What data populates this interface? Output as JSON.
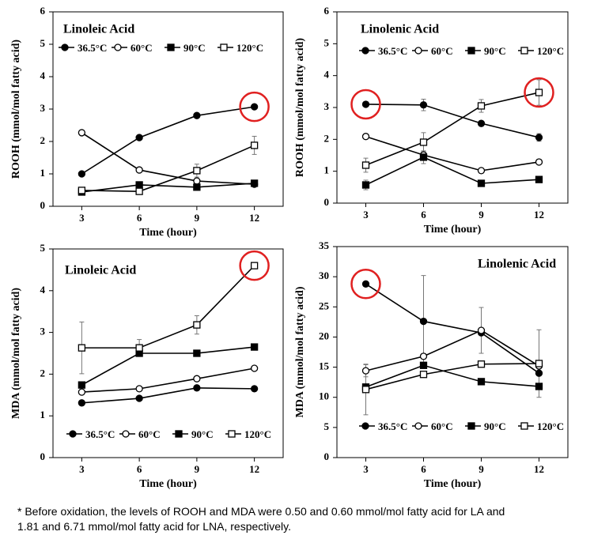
{
  "chart_data": [
    {
      "type": "line",
      "title": "Linoleic Acid",
      "x_label": "Time (hour)",
      "y_label": "ROOH (mmol/mol fatty acid)",
      "categories": [
        "3",
        "6",
        "9",
        "12"
      ],
      "ylim": [
        0,
        6
      ],
      "yticks": [
        0,
        1,
        2,
        3,
        4,
        5,
        6
      ],
      "legend": "top",
      "series": [
        {
          "name": "36.5°C",
          "color": "#000000",
          "marker": "circle",
          "filled": true,
          "values": [
            1.0,
            2.12,
            2.8,
            3.07
          ],
          "errors": [
            null,
            null,
            null,
            null
          ]
        },
        {
          "name": "60°C",
          "color": "#000000",
          "marker": "circle",
          "filled": false,
          "values": [
            2.27,
            1.12,
            0.78,
            0.68
          ],
          "errors": [
            null,
            null,
            null,
            null
          ]
        },
        {
          "name": "90°C",
          "color": "#000000",
          "marker": "square",
          "filled": true,
          "values": [
            0.44,
            0.66,
            0.59,
            0.71
          ],
          "errors": [
            null,
            null,
            null,
            null
          ]
        },
        {
          "name": "120°C",
          "color": "#000000",
          "marker": "square",
          "filled": false,
          "values": [
            0.49,
            0.46,
            1.1,
            1.88
          ],
          "errors": [
            null,
            null,
            0.2,
            0.28
          ]
        }
      ],
      "highlights": [
        {
          "series": 0,
          "index": 3
        }
      ]
    },
    {
      "type": "line",
      "title": "Linolenic Acid",
      "x_label": "Time (hour)",
      "y_label": "ROOH (mmol/mol fatty acid)",
      "categories": [
        "3",
        "6",
        "9",
        "12"
      ],
      "ylim": [
        0,
        6
      ],
      "yticks": [
        0,
        1,
        2,
        3,
        4,
        5,
        6
      ],
      "legend": "top",
      "series": [
        {
          "name": "36.5°C",
          "color": "#000000",
          "marker": "circle",
          "filled": true,
          "values": [
            3.1,
            3.08,
            2.5,
            2.06
          ],
          "errors": [
            null,
            0.18,
            null,
            0.12
          ]
        },
        {
          "name": "60°C",
          "color": "#000000",
          "marker": "circle",
          "filled": false,
          "values": [
            2.09,
            1.51,
            1.02,
            1.29
          ],
          "errors": [
            null,
            null,
            null,
            null
          ]
        },
        {
          "name": "90°C",
          "color": "#000000",
          "marker": "square",
          "filled": true,
          "values": [
            0.57,
            1.44,
            0.62,
            0.74
          ],
          "errors": [
            0.15,
            0.2,
            null,
            null
          ]
        },
        {
          "name": "120°C",
          "color": "#000000",
          "marker": "square",
          "filled": false,
          "values": [
            1.19,
            1.91,
            3.05,
            3.47
          ],
          "errors": [
            0.22,
            0.3,
            0.2,
            0.4
          ]
        }
      ],
      "highlights": [
        {
          "series": 0,
          "index": 0
        },
        {
          "series": 3,
          "index": 3
        }
      ]
    },
    {
      "type": "line",
      "title": "Linoleic Acid",
      "x_label": "Time (hour)",
      "y_label": "MDA (mmol/mol fatty acid)",
      "categories": [
        "3",
        "6",
        "9",
        "12"
      ],
      "ylim": [
        0,
        5
      ],
      "yticks": [
        0,
        1,
        2,
        3,
        4,
        5
      ],
      "legend": "bottom",
      "series": [
        {
          "name": "36.5°C",
          "color": "#000000",
          "marker": "circle",
          "filled": true,
          "values": [
            1.31,
            1.42,
            1.67,
            1.65
          ],
          "errors": [
            null,
            null,
            null,
            null
          ]
        },
        {
          "name": "60°C",
          "color": "#000000",
          "marker": "circle",
          "filled": false,
          "values": [
            1.57,
            1.65,
            1.89,
            2.14
          ],
          "errors": [
            null,
            null,
            null,
            null
          ]
        },
        {
          "name": "90°C",
          "color": "#000000",
          "marker": "square",
          "filled": true,
          "values": [
            1.74,
            2.5,
            2.5,
            2.65
          ],
          "errors": [
            null,
            null,
            null,
            null
          ]
        },
        {
          "name": "120°C",
          "color": "#000000",
          "marker": "square",
          "filled": false,
          "values": [
            2.63,
            2.63,
            3.18,
            4.6
          ],
          "errors": [
            0.62,
            0.2,
            0.22,
            null
          ]
        }
      ],
      "highlights": [
        {
          "series": 3,
          "index": 3
        }
      ]
    },
    {
      "type": "line",
      "title": "Linolenic Acid",
      "x_label": "Time (hour)",
      "y_label": "MDA (mmol/mol fatty acid)",
      "categories": [
        "3",
        "6",
        "9",
        "12"
      ],
      "ylim": [
        0,
        35
      ],
      "yticks": [
        0,
        5,
        10,
        15,
        20,
        25,
        30,
        35
      ],
      "legend": "bottom",
      "series": [
        {
          "name": "36.5°C",
          "color": "#000000",
          "marker": "circle",
          "filled": true,
          "values": [
            28.8,
            22.6,
            20.7,
            14.0
          ],
          "errors": [
            null,
            7.6,
            null,
            null
          ]
        },
        {
          "name": "60°C",
          "color": "#000000",
          "marker": "circle",
          "filled": false,
          "values": [
            14.4,
            16.8,
            21.1,
            15.2
          ],
          "errors": [
            1.0,
            null,
            3.8,
            null
          ]
        },
        {
          "name": "90°C",
          "color": "#000000",
          "marker": "square",
          "filled": true,
          "values": [
            11.7,
            15.3,
            12.6,
            11.8
          ],
          "errors": [
            null,
            null,
            null,
            null
          ]
        },
        {
          "name": "120°C",
          "color": "#000000",
          "marker": "square",
          "filled": false,
          "values": [
            11.3,
            13.8,
            15.5,
            15.6
          ],
          "errors": [
            4.2,
            null,
            null,
            5.6
          ]
        }
      ],
      "highlights": [
        {
          "series": 0,
          "index": 0
        }
      ]
    }
  ],
  "footnote": [
    "* Before oxidation, the levels of ROOH and MDA were 0.50 and 0.60 mmol/mol fatty acid for LA and",
    "1.81 and 6.71 mmol/mol fatty acid for LNA, respectively."
  ]
}
